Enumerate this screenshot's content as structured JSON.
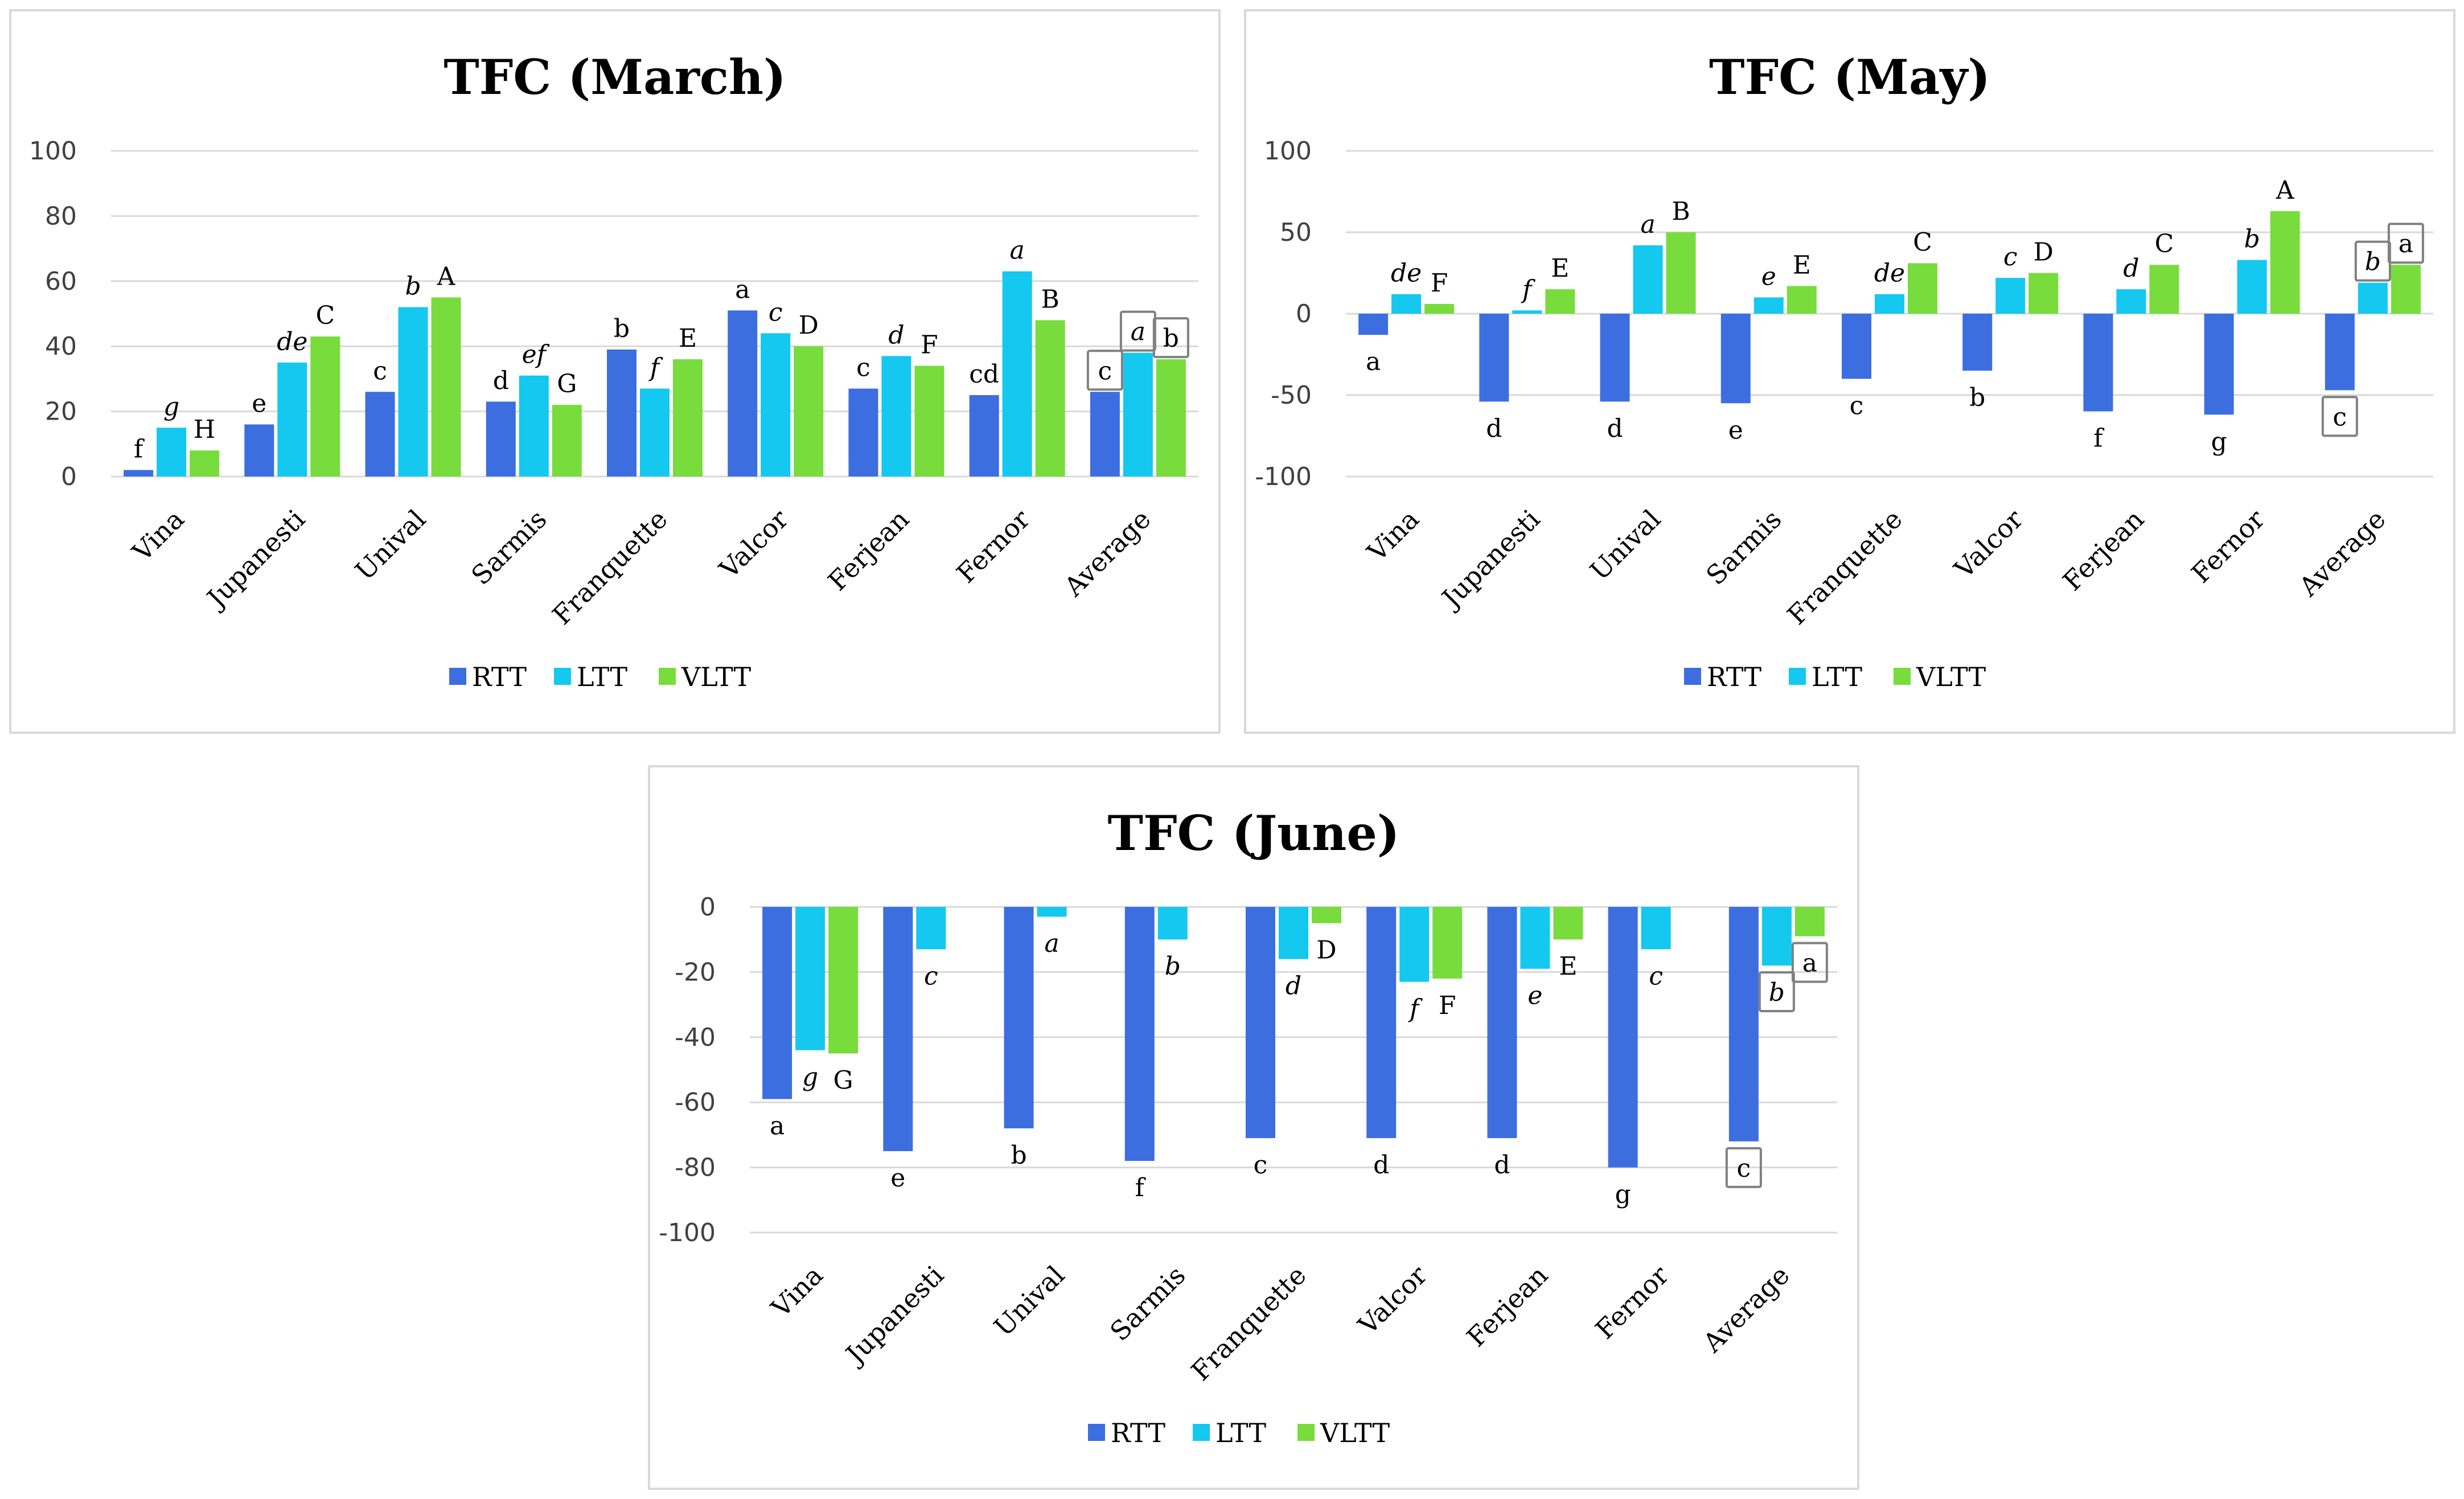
{
  "colors": {
    "RTT": "#3c6ee0",
    "LTT": "#14c8f0",
    "VLTT": "#78dc3c",
    "grid": "#d9d9d9",
    "box": "#808080"
  },
  "chart_data": [
    {
      "type": "bar",
      "title": "TFC (March)",
      "categories": [
        "Vina",
        "Jupanesti",
        "Unival",
        "Sarmis",
        "Franquette",
        "Valcor",
        "Ferjean",
        "Fernor",
        "Average"
      ],
      "ylim": [
        0,
        100
      ],
      "yticks": [
        0,
        20,
        40,
        60,
        80,
        100
      ],
      "ytick_labels": [
        "0",
        "20",
        "40",
        "60",
        "80",
        "100"
      ],
      "legend": [
        "RTT",
        "LTT",
        "VLTT"
      ],
      "legend_position": "bottom",
      "series": [
        {
          "name": "RTT",
          "values": [
            2,
            16,
            26,
            23,
            39,
            51,
            27,
            25,
            26
          ],
          "labels": [
            "f",
            "e",
            "c",
            "d",
            "b",
            "a",
            "c",
            "cd",
            "c"
          ]
        },
        {
          "name": "LTT",
          "values": [
            15,
            35,
            52,
            31,
            27,
            44,
            37,
            63,
            38
          ],
          "labels": [
            "g",
            "de",
            "b",
            "ef",
            "f",
            "c",
            "d",
            "a",
            "a"
          ]
        },
        {
          "name": "VLTT",
          "values": [
            8,
            43,
            55,
            22,
            36,
            40,
            34,
            48,
            36
          ],
          "labels": [
            "H",
            "C",
            "A",
            "G",
            "E",
            "D",
            "F",
            "B",
            "b"
          ]
        }
      ]
    },
    {
      "type": "bar",
      "title": "TFC (May)",
      "categories": [
        "Vina",
        "Jupanesti",
        "Unival",
        "Sarmis",
        "Franquette",
        "Valcor",
        "Ferjean",
        "Fernor",
        "Average"
      ],
      "ylim": [
        -100,
        100
      ],
      "yticks": [
        -100,
        -50,
        0,
        50,
        100
      ],
      "ytick_labels": [
        "-100",
        "-50",
        "0",
        "50",
        "100"
      ],
      "legend": [
        "RTT",
        "LTT",
        "VLTT"
      ],
      "legend_position": "bottom",
      "series": [
        {
          "name": "RTT",
          "values": [
            -13,
            -54,
            -54,
            -55,
            -40,
            -35,
            -60,
            -62,
            -47
          ],
          "labels": [
            "a",
            "d",
            "d",
            "e",
            "c",
            "b",
            "f",
            "g",
            "c"
          ]
        },
        {
          "name": "LTT",
          "values": [
            12,
            2,
            42,
            10,
            12,
            22,
            15,
            33,
            19
          ],
          "labels": [
            "de",
            "f",
            "a",
            "e",
            "de",
            "c",
            "d",
            "b",
            "b"
          ]
        },
        {
          "name": "VLTT",
          "values": [
            6,
            15,
            50,
            17,
            31,
            25,
            30,
            63,
            30
          ],
          "labels": [
            "F",
            "E",
            "B",
            "E",
            "C",
            "D",
            "C",
            "A",
            "a"
          ]
        }
      ]
    },
    {
      "type": "bar",
      "title": "TFC (June)",
      "categories": [
        "Vina",
        "Jupanesti",
        "Unival",
        "Sarmis",
        "Franquette",
        "Valcor",
        "Ferjean",
        "Fernor",
        "Average"
      ],
      "ylim": [
        -100,
        0
      ],
      "yticks": [
        -100,
        -80,
        -60,
        -40,
        -20,
        0
      ],
      "ytick_labels": [
        "-100",
        "-80",
        "-60",
        "-40",
        "-20",
        "0"
      ],
      "legend": [
        "RTT",
        "LTT",
        "VLTT"
      ],
      "legend_position": "bottom",
      "series": [
        {
          "name": "RTT",
          "values": [
            -59,
            -75,
            -68,
            -78,
            -71,
            -71,
            -71,
            -80,
            -72
          ],
          "labels": [
            "a",
            "e",
            "b",
            "f",
            "c",
            "d",
            "d",
            "g",
            "c"
          ]
        },
        {
          "name": "LTT",
          "values": [
            -44,
            -13,
            -3,
            -10,
            -16,
            -23,
            -19,
            -13,
            -18
          ],
          "labels": [
            "g",
            "c",
            "a",
            "b",
            "d",
            "f",
            "e",
            "c",
            "b"
          ]
        },
        {
          "name": "VLTT",
          "values": [
            -45,
            null,
            null,
            null,
            -5,
            -22,
            -10,
            null,
            -9
          ],
          "labels": [
            "G",
            "",
            "",
            "",
            "D",
            "F",
            "E",
            "",
            "a"
          ]
        }
      ]
    }
  ]
}
